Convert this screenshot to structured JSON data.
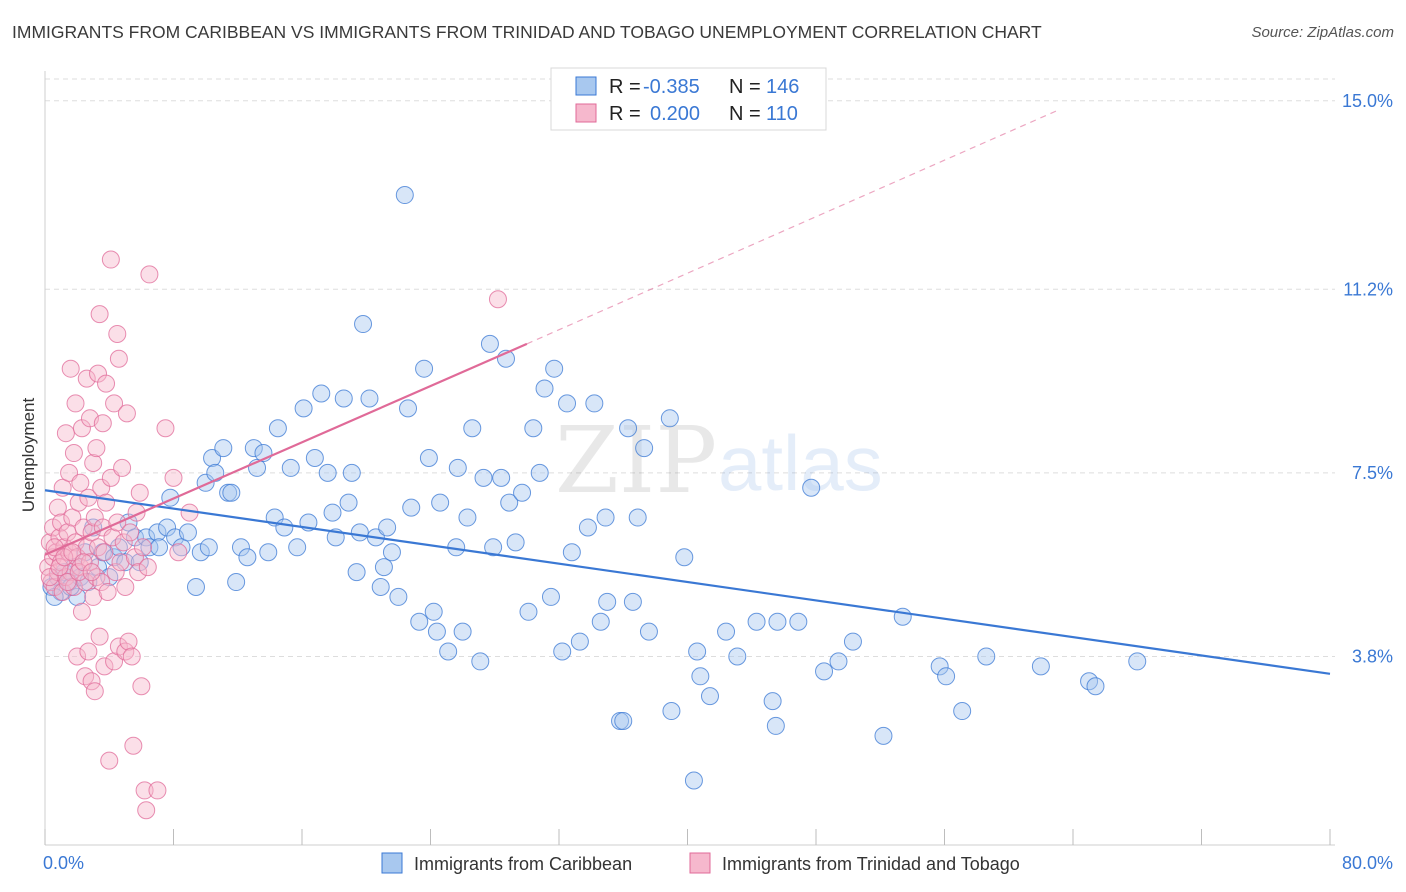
{
  "title": "IMMIGRANTS FROM CARIBBEAN VS IMMIGRANTS FROM TRINIDAD AND TOBAGO UNEMPLOYMENT CORRELATION CHART",
  "source": "Source: ZipAtlas.com",
  "watermark": {
    "zip": "ZIP",
    "atlas": "atlas"
  },
  "colors": {
    "blue": "#3a78d4",
    "blue_fill": "#a8c8ef",
    "pink": "#e06a98",
    "pink_fill": "#f6b8cd",
    "grid": "#dddddd"
  },
  "legend": {
    "rows": [
      {
        "r_label": "R =",
        "r_value": "-0.385",
        "n_label": "N =",
        "n_value": "146"
      },
      {
        "r_label": "R =",
        "r_value": "0.200",
        "n_label": "N =",
        "n_value": "110"
      }
    ]
  },
  "chart_data": {
    "type": "scatter",
    "title": "IMMIGRANTS FROM CARIBBEAN VS IMMIGRANTS FROM TRINIDAD AND TOBAGO UNEMPLOYMENT CORRELATION CHART",
    "ylabel": "Unemployment",
    "xlabel": "",
    "xlim": [
      0,
      80
    ],
    "ylim": [
      0,
      15.6
    ],
    "x_tick_labels": [
      "0.0%",
      "80.0%"
    ],
    "y_ticks": [
      3.8,
      7.5,
      11.2,
      15.0
    ],
    "y_tick_labels": [
      "3.8%",
      "7.5%",
      "11.2%",
      "15.0%"
    ],
    "grid": true,
    "legend_position": "top-center",
    "series": [
      {
        "name": "Immigrants from Caribbean",
        "color": "#3a78d4",
        "regression": {
          "x": [
            0,
            80
          ],
          "y": [
            7.15,
            3.45
          ],
          "style": "solid"
        },
        "points": [
          [
            0.4,
            5.2
          ],
          [
            0.8,
            5.4
          ],
          [
            1.0,
            5.1
          ],
          [
            1.2,
            5.5
          ],
          [
            1.5,
            5.3
          ],
          [
            1.8,
            5.6
          ],
          [
            2.0,
            5.0
          ],
          [
            2.2,
            5.4
          ],
          [
            2.5,
            5.9
          ],
          [
            2.7,
            5.3
          ],
          [
            3.0,
            6.4
          ],
          [
            3.3,
            5.6
          ],
          [
            3.6,
            5.9
          ],
          [
            4.0,
            5.4
          ],
          [
            4.3,
            5.8
          ],
          [
            4.6,
            6.0
          ],
          [
            5.0,
            5.7
          ],
          [
            5.2,
            6.5
          ],
          [
            5.6,
            6.2
          ],
          [
            5.9,
            5.7
          ],
          [
            6.3,
            6.2
          ],
          [
            6.5,
            6.0
          ],
          [
            7.0,
            6.3
          ],
          [
            7.1,
            6.0
          ],
          [
            7.6,
            6.4
          ],
          [
            7.8,
            7.0
          ],
          [
            8.1,
            6.2
          ],
          [
            8.5,
            6.0
          ],
          [
            8.9,
            6.3
          ],
          [
            9.4,
            5.2
          ],
          [
            9.7,
            5.9
          ],
          [
            10.0,
            7.3
          ],
          [
            10.2,
            6.0
          ],
          [
            10.4,
            7.8
          ],
          [
            10.6,
            7.5
          ],
          [
            11.1,
            8.0
          ],
          [
            11.4,
            7.1
          ],
          [
            11.6,
            7.1
          ],
          [
            11.9,
            5.3
          ],
          [
            12.2,
            6.0
          ],
          [
            12.6,
            5.8
          ],
          [
            13.0,
            8.0
          ],
          [
            13.2,
            7.6
          ],
          [
            13.6,
            7.9
          ],
          [
            13.9,
            5.9
          ],
          [
            14.3,
            6.6
          ],
          [
            14.5,
            8.4
          ],
          [
            14.9,
            6.4
          ],
          [
            15.3,
            7.6
          ],
          [
            15.7,
            6.0
          ],
          [
            16.1,
            8.8
          ],
          [
            16.4,
            6.5
          ],
          [
            16.8,
            7.8
          ],
          [
            17.2,
            9.1
          ],
          [
            17.6,
            7.5
          ],
          [
            17.9,
            6.7
          ],
          [
            18.1,
            6.2
          ],
          [
            18.6,
            9.0
          ],
          [
            18.9,
            6.9
          ],
          [
            19.1,
            7.5
          ],
          [
            19.4,
            5.5
          ],
          [
            19.6,
            6.3
          ],
          [
            19.8,
            10.5
          ],
          [
            20.2,
            9.0
          ],
          [
            20.6,
            6.2
          ],
          [
            20.9,
            5.2
          ],
          [
            21.1,
            5.6
          ],
          [
            21.3,
            6.4
          ],
          [
            21.6,
            5.9
          ],
          [
            22.0,
            5.0
          ],
          [
            22.4,
            13.1
          ],
          [
            22.6,
            8.8
          ],
          [
            22.8,
            6.8
          ],
          [
            23.3,
            4.5
          ],
          [
            23.6,
            9.6
          ],
          [
            23.9,
            7.8
          ],
          [
            24.2,
            4.7
          ],
          [
            24.4,
            4.3
          ],
          [
            24.6,
            6.9
          ],
          [
            25.1,
            3.9
          ],
          [
            25.6,
            6.0
          ],
          [
            25.7,
            7.6
          ],
          [
            26.0,
            4.3
          ],
          [
            26.3,
            6.6
          ],
          [
            26.6,
            8.4
          ],
          [
            27.1,
            3.7
          ],
          [
            27.3,
            7.4
          ],
          [
            27.7,
            10.1
          ],
          [
            27.9,
            6.0
          ],
          [
            28.4,
            7.4
          ],
          [
            28.7,
            9.8
          ],
          [
            28.9,
            6.9
          ],
          [
            29.3,
            6.1
          ],
          [
            29.7,
            7.1
          ],
          [
            30.1,
            4.7
          ],
          [
            30.4,
            8.4
          ],
          [
            30.8,
            7.5
          ],
          [
            31.1,
            9.2
          ],
          [
            31.5,
            5.0
          ],
          [
            31.7,
            9.6
          ],
          [
            32.2,
            3.9
          ],
          [
            32.5,
            8.9
          ],
          [
            32.8,
            5.9
          ],
          [
            33.3,
            4.1
          ],
          [
            33.8,
            6.4
          ],
          [
            34.2,
            8.9
          ],
          [
            34.6,
            4.5
          ],
          [
            34.9,
            6.6
          ],
          [
            35.0,
            4.9
          ],
          [
            35.8,
            2.5
          ],
          [
            36.0,
            2.5
          ],
          [
            36.3,
            8.4
          ],
          [
            36.6,
            4.9
          ],
          [
            36.9,
            6.6
          ],
          [
            37.3,
            8.0
          ],
          [
            37.6,
            4.3
          ],
          [
            38.9,
            8.6
          ],
          [
            39.0,
            2.7
          ],
          [
            39.8,
            5.8
          ],
          [
            40.4,
            1.3
          ],
          [
            40.6,
            3.9
          ],
          [
            40.8,
            3.4
          ],
          [
            41.4,
            3.0
          ],
          [
            42.4,
            4.3
          ],
          [
            43.1,
            3.8
          ],
          [
            44.3,
            4.5
          ],
          [
            45.3,
            2.9
          ],
          [
            45.5,
            2.4
          ],
          [
            45.6,
            4.5
          ],
          [
            46.9,
            4.5
          ],
          [
            47.7,
            7.2
          ],
          [
            48.5,
            3.5
          ],
          [
            49.4,
            3.7
          ],
          [
            50.3,
            4.1
          ],
          [
            52.2,
            2.2
          ],
          [
            53.4,
            4.6
          ],
          [
            55.7,
            3.6
          ],
          [
            56.1,
            3.4
          ],
          [
            57.1,
            2.7
          ],
          [
            58.6,
            3.8
          ],
          [
            62.0,
            3.6
          ],
          [
            65.0,
            3.3
          ],
          [
            65.4,
            3.2
          ],
          [
            68.0,
            3.7
          ],
          [
            0.6,
            5.0
          ],
          [
            1.6,
            5.2
          ]
        ]
      },
      {
        "name": "Immigrants from Trinidad and Tobago",
        "color": "#e06a98",
        "regression": {
          "x": [
            0,
            30
          ],
          "y": [
            5.85,
            10.1
          ],
          "style": "solid",
          "extension": {
            "x": [
              30,
              63
            ],
            "y": [
              10.1,
              14.8
            ],
            "style": "dashed"
          }
        },
        "points": [
          [
            0.2,
            5.6
          ],
          [
            0.3,
            6.1
          ],
          [
            0.4,
            5.3
          ],
          [
            0.5,
            5.8
          ],
          [
            0.5,
            6.4
          ],
          [
            0.6,
            5.2
          ],
          [
            0.7,
            5.9
          ],
          [
            0.8,
            6.8
          ],
          [
            0.8,
            5.5
          ],
          [
            0.9,
            6.2
          ],
          [
            1.0,
            5.7
          ],
          [
            1.0,
            6.5
          ],
          [
            1.1,
            5.1
          ],
          [
            1.1,
            7.2
          ],
          [
            1.2,
            6.0
          ],
          [
            1.3,
            5.4
          ],
          [
            1.3,
            8.3
          ],
          [
            1.4,
            6.3
          ],
          [
            1.5,
            5.9
          ],
          [
            1.5,
            7.5
          ],
          [
            1.6,
            5.5
          ],
          [
            1.6,
            9.6
          ],
          [
            1.7,
            6.6
          ],
          [
            1.8,
            5.2
          ],
          [
            1.8,
            7.9
          ],
          [
            1.9,
            8.9
          ],
          [
            1.9,
            6.1
          ],
          [
            2.0,
            5.8
          ],
          [
            2.0,
            3.8
          ],
          [
            2.1,
            6.9
          ],
          [
            2.2,
            7.3
          ],
          [
            2.2,
            5.6
          ],
          [
            2.3,
            4.7
          ],
          [
            2.3,
            8.4
          ],
          [
            2.4,
            6.4
          ],
          [
            2.5,
            3.4
          ],
          [
            2.5,
            5.3
          ],
          [
            2.6,
            9.4
          ],
          [
            2.6,
            6.0
          ],
          [
            2.7,
            7.0
          ],
          [
            2.7,
            3.9
          ],
          [
            2.8,
            5.7
          ],
          [
            2.8,
            8.6
          ],
          [
            2.9,
            6.3
          ],
          [
            2.9,
            3.3
          ],
          [
            3.0,
            5.0
          ],
          [
            3.0,
            7.7
          ],
          [
            3.1,
            6.6
          ],
          [
            3.1,
            3.1
          ],
          [
            3.2,
            5.4
          ],
          [
            3.2,
            8.0
          ],
          [
            3.3,
            6.0
          ],
          [
            3.3,
            9.5
          ],
          [
            3.4,
            4.2
          ],
          [
            3.4,
            10.7
          ],
          [
            3.5,
            5.3
          ],
          [
            3.5,
            7.2
          ],
          [
            3.6,
            6.4
          ],
          [
            3.6,
            8.5
          ],
          [
            3.7,
            3.6
          ],
          [
            3.7,
            5.9
          ],
          [
            3.8,
            9.3
          ],
          [
            3.8,
            6.9
          ],
          [
            3.9,
            5.1
          ],
          [
            4.0,
            1.7
          ],
          [
            4.1,
            11.8
          ],
          [
            4.1,
            7.4
          ],
          [
            4.2,
            6.2
          ],
          [
            4.3,
            8.9
          ],
          [
            4.3,
            3.7
          ],
          [
            4.4,
            5.5
          ],
          [
            4.5,
            10.3
          ],
          [
            4.5,
            6.5
          ],
          [
            4.6,
            4.0
          ],
          [
            4.6,
            9.8
          ],
          [
            4.7,
            5.7
          ],
          [
            4.8,
            7.6
          ],
          [
            4.9,
            6.1
          ],
          [
            5.0,
            3.9
          ],
          [
            5.0,
            5.2
          ],
          [
            5.1,
            8.7
          ],
          [
            5.2,
            4.1
          ],
          [
            5.3,
            6.3
          ],
          [
            5.4,
            3.8
          ],
          [
            5.5,
            2.0
          ],
          [
            5.6,
            5.8
          ],
          [
            5.7,
            6.7
          ],
          [
            5.8,
            5.5
          ],
          [
            5.9,
            7.1
          ],
          [
            6.0,
            3.2
          ],
          [
            6.1,
            6.0
          ],
          [
            6.2,
            1.1
          ],
          [
            6.3,
            0.7
          ],
          [
            6.4,
            5.6
          ],
          [
            6.5,
            11.5
          ],
          [
            7.0,
            1.1
          ],
          [
            7.5,
            8.4
          ],
          [
            8.0,
            7.4
          ],
          [
            8.3,
            5.9
          ],
          [
            9.0,
            6.7
          ],
          [
            0.3,
            5.4
          ],
          [
            0.6,
            6.0
          ],
          [
            0.9,
            5.6
          ],
          [
            1.2,
            5.8
          ],
          [
            1.4,
            5.3
          ],
          [
            1.7,
            5.9
          ],
          [
            2.1,
            5.5
          ],
          [
            2.4,
            5.7
          ],
          [
            28.2,
            11.0
          ],
          [
            2.9,
            5.5
          ]
        ]
      }
    ]
  },
  "bottom_legend": [
    "Immigrants from Caribbean",
    "Immigrants from Trinidad and Tobago"
  ]
}
